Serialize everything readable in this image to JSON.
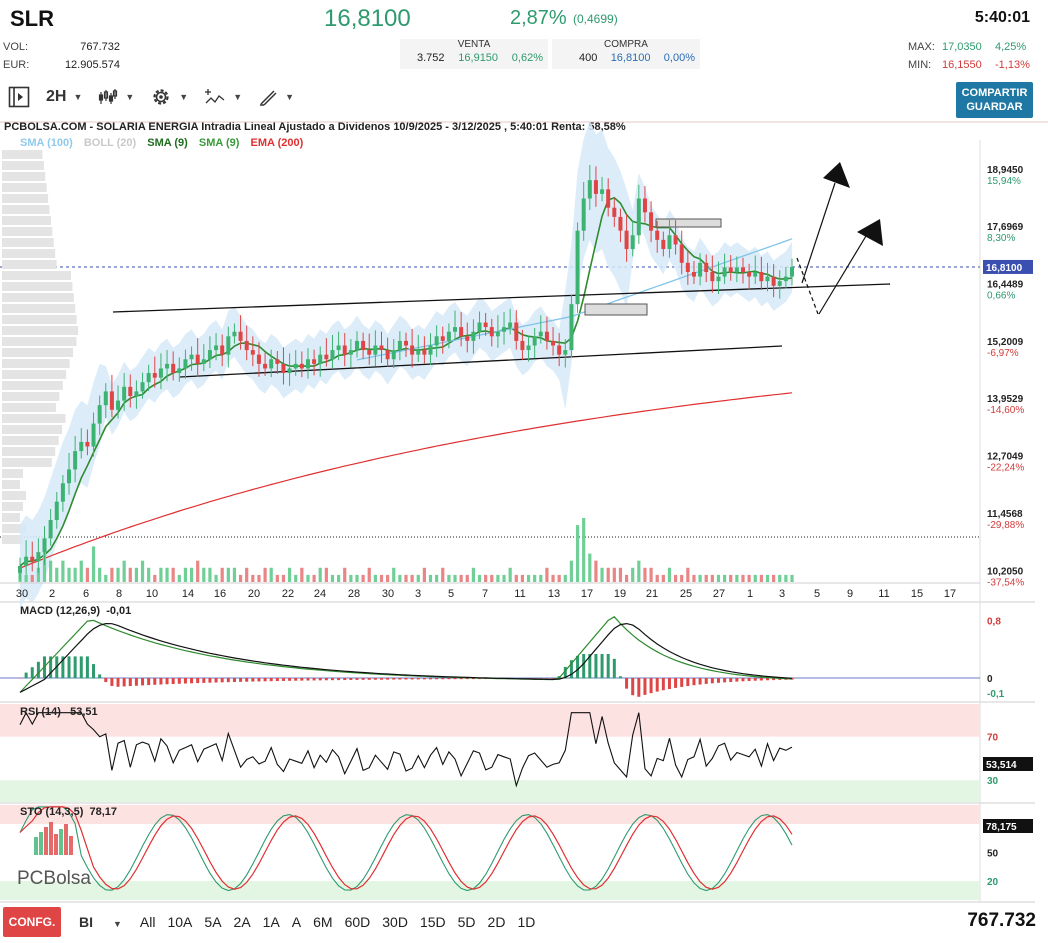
{
  "header": {
    "ticker": "SLR",
    "price": "16,8100",
    "change_pct": "2,87%",
    "change_abs": "(0,4699)",
    "time": "5:40:01"
  },
  "stats": {
    "vol_label": "VOL:",
    "vol_value": "767.732",
    "eur_label": "EUR:",
    "eur_value": "12.905.574",
    "max_label": "MAX:",
    "max_value": "17,0350",
    "max_pct": "4,25%",
    "min_label": "MIN:",
    "min_value": "16,1550",
    "min_pct": "-1,13%"
  },
  "orderbook": {
    "sell_label": "VENTA",
    "sell_qty": "3.752",
    "sell_price": "16,9150",
    "sell_pct": "0,62%",
    "buy_label": "COMPRA",
    "buy_qty": "400",
    "buy_price": "16,8100",
    "buy_pct": "0,00%"
  },
  "toolbar": {
    "interval": "2H",
    "share_label": "COMPARTIR",
    "save_label": "GUARDAR"
  },
  "chart_title": "PCBOLSA.COM - SOLARIA ENERGIA Intradia Lineal Ajustado a Dividenos 10/9/2025 - 3/12/2025 , 5:40:01 Renta: 58,58%",
  "legend": {
    "sma100": "SMA (100)",
    "boll": "BOLL (20)",
    "sma9a": "SMA (9)",
    "sma9b": "SMA (9)",
    "ema200": "EMA (200)"
  },
  "colors": {
    "up": "#3cb371",
    "down": "#e04545",
    "sma100": "#7fc4ea",
    "sma9": "#2e8b2e",
    "ema200": "#e03030",
    "boll_fill": "#d6eaf8",
    "accent": "#1f78a4"
  },
  "chart_data": [
    {
      "type": "candlestick",
      "name": "price",
      "y_ticks": [
        {
          "value": "18,9450",
          "pct": "15,94%"
        },
        {
          "value": "17,6969",
          "pct": "8,30%"
        },
        {
          "value": "16,4489",
          "pct": "0,66%"
        },
        {
          "value": "15,2009",
          "pct": "-6,97%"
        },
        {
          "value": "13,9529",
          "pct": "-14,60%"
        },
        {
          "value": "12,7049",
          "pct": "-22,24%"
        },
        {
          "value": "11,4568",
          "pct": "-29,88%"
        },
        {
          "value": "10,2050",
          "pct": "-37,54%"
        }
      ],
      "last_price_label": "16,8100",
      "x_ticks": [
        "30",
        "2",
        "6",
        "8",
        "10",
        "14",
        "16",
        "20",
        "22",
        "24",
        "28",
        "30",
        "3",
        "5",
        "7",
        "11",
        "13",
        "17",
        "19",
        "21",
        "25",
        "27",
        "1",
        "3",
        "5",
        "9",
        "11",
        "15",
        "17"
      ],
      "ylim": [
        9.95,
        19.4
      ],
      "close_series": [
        10.3,
        10.5,
        10.4,
        10.6,
        10.9,
        11.3,
        11.7,
        12.1,
        12.4,
        12.8,
        13.0,
        12.9,
        13.4,
        13.8,
        14.1,
        13.7,
        13.9,
        14.2,
        14.0,
        14.1,
        14.3,
        14.5,
        14.4,
        14.6,
        14.7,
        14.5,
        14.6,
        14.8,
        14.9,
        14.7,
        14.8,
        15.0,
        15.1,
        14.9,
        15.3,
        15.4,
        15.2,
        15.0,
        14.9,
        14.7,
        14.6,
        14.8,
        14.7,
        14.5,
        14.6,
        14.7,
        14.6,
        14.8,
        14.7,
        14.9,
        14.8,
        15.0,
        15.1,
        14.9,
        15.0,
        15.2,
        15.0,
        14.9,
        15.1,
        15.0,
        14.8,
        15.0,
        15.2,
        15.1,
        14.9,
        15.0,
        14.9,
        15.1,
        15.3,
        15.2,
        15.4,
        15.5,
        15.3,
        15.2,
        15.4,
        15.6,
        15.5,
        15.3,
        15.4,
        15.5,
        15.6,
        15.2,
        15.0,
        15.1,
        15.3,
        15.4,
        15.2,
        15.1,
        14.9,
        15.0,
        16.0,
        17.6,
        18.3,
        18.7,
        18.4,
        18.5,
        18.1,
        17.9,
        17.6,
        17.2,
        17.5,
        18.3,
        18.0,
        17.6,
        17.4,
        17.2,
        17.5,
        17.3,
        16.9,
        16.7,
        16.6,
        16.9,
        16.7,
        16.5,
        16.6,
        16.8,
        16.7,
        16.8,
        16.7,
        16.6,
        16.7,
        16.5,
        16.6,
        16.4,
        16.5,
        16.6,
        16.81
      ],
      "volume_series": [
        2,
        1,
        1,
        2,
        5,
        3,
        2,
        3,
        2,
        2,
        3,
        2,
        5,
        2,
        1,
        2,
        2,
        3,
        2,
        2,
        3,
        2,
        1,
        2,
        2,
        2,
        1,
        2,
        2,
        3,
        2,
        2,
        1,
        2,
        2,
        2,
        1,
        2,
        1,
        1,
        2,
        2,
        1,
        1,
        2,
        1,
        2,
        1,
        1,
        2,
        2,
        1,
        1,
        2,
        1,
        1,
        1,
        2,
        1,
        1,
        1,
        2,
        1,
        1,
        1,
        1,
        2,
        1,
        1,
        2,
        1,
        1,
        1,
        1,
        2,
        1,
        1,
        1,
        1,
        1,
        2,
        1,
        1,
        1,
        1,
        1,
        2,
        1,
        1,
        1,
        3,
        8,
        9,
        4,
        3,
        2,
        2,
        2,
        2,
        1,
        2,
        3,
        2,
        2,
        1,
        1,
        2,
        1,
        1,
        2,
        1,
        1,
        1,
        1,
        1,
        1,
        1,
        1,
        1,
        1,
        1,
        1,
        1,
        1,
        1,
        1,
        1
      ]
    },
    {
      "type": "line",
      "name": "MACD (12,26,9)",
      "value_label": "-0,01",
      "y_ticks": [
        "0,8",
        "0",
        "-0,1"
      ]
    },
    {
      "type": "line",
      "name": "RSI (14)",
      "value_label": "53,51",
      "last_label": "53,514",
      "y_ticks": [
        "70",
        "30"
      ]
    },
    {
      "type": "line",
      "name": "STO (14,3,5)",
      "value_label": "78,17",
      "last_label": "78,175",
      "y_ticks": [
        "50",
        "20"
      ]
    }
  ],
  "watermark": {
    "brand": "PCBolsa"
  },
  "bottombar": {
    "config_label": "CONFG.",
    "mode_label": "BI",
    "ranges": [
      "All",
      "10A",
      "5A",
      "2A",
      "1A",
      "A",
      "6M",
      "60D",
      "30D",
      "15D",
      "5D",
      "2D",
      "1D"
    ],
    "volume_total": "767.732"
  }
}
